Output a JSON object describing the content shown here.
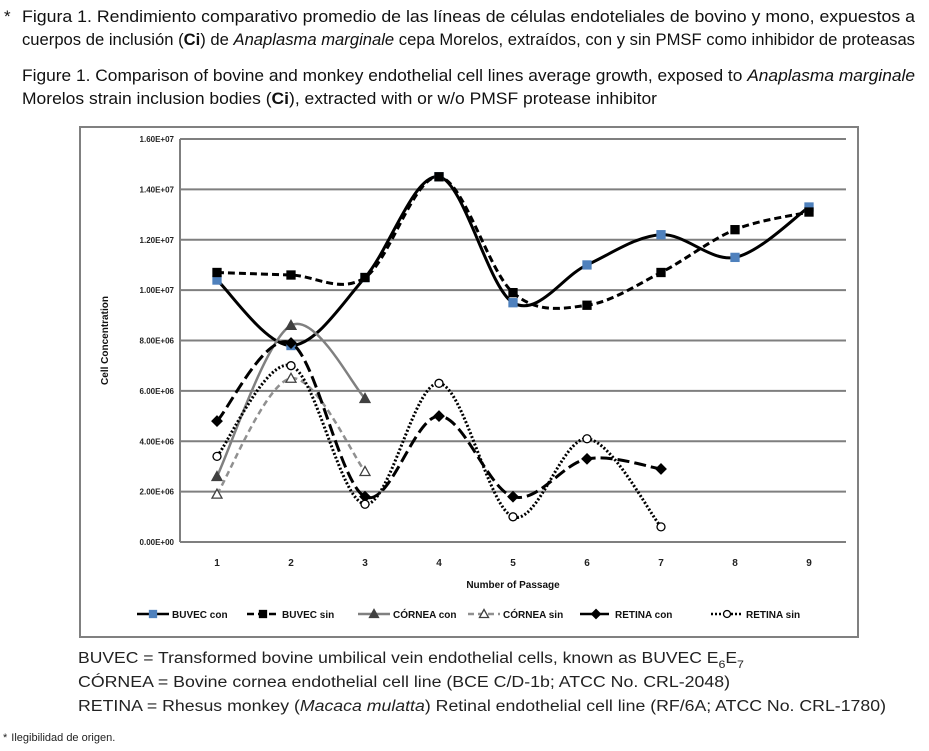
{
  "header": {
    "marker": "*",
    "es": [
      [
        "Figura 1. Rendimiento comparativo promedio de las líneas  de células endoteliales de bovino y mono, expuestos a"
      ],
      [
        "cuerpos de inclusión (",
        "Ci",
        ") de ",
        "Anaplasma marginale",
        " cepa Morelos, extraídos, con y sin PMSF como inhibidor de proteasas"
      ]
    ],
    "en": [
      [
        "Figure 1. Comparison of bovine and monkey endothelial cell lines average growth, exposed to ",
        "Anaplasma marginale"
      ],
      [
        "Morelos strain inclusion bodies (",
        "Ci",
        "), extracted with  or w/o PMSF protease inhibitor"
      ]
    ]
  },
  "chart_data": {
    "type": "line",
    "x_label": "Number of Passage",
    "y_label": "Cell Concentration",
    "categories": [
      "1",
      "2",
      "3",
      "4",
      "5",
      "6",
      "7",
      "8",
      "9"
    ],
    "ylim": [
      0,
      16000000
    ],
    "yticks": [
      {
        "value": 0,
        "label": "0.00E+00"
      },
      {
        "value": 2000000,
        "label": "2.00E+06"
      },
      {
        "value": 4000000,
        "label": "4.00E+06"
      },
      {
        "value": 6000000,
        "label": "6.00E+06"
      },
      {
        "value": 8000000,
        "label": "8.00E+06"
      },
      {
        "value": 10000000,
        "label": "1.00E+07"
      },
      {
        "value": 12000000,
        "label": "1.20E+07"
      },
      {
        "value": 14000000,
        "label": "1.40E+07"
      },
      {
        "value": 16000000,
        "label": "1.60E+07"
      }
    ],
    "grid": true,
    "series": [
      {
        "name": "BUVEC con",
        "color": "#000000",
        "marker_color": "#4f81bd",
        "marker": "square",
        "filled": true,
        "dash": "none",
        "values": [
          10400000,
          7800000,
          10500000,
          14500000,
          9500000,
          11000000,
          12200000,
          11300000,
          13300000
        ]
      },
      {
        "name": "BUVEC sin",
        "color": "#000000",
        "marker_color": "#000000",
        "marker": "square",
        "filled": true,
        "dash": "7 4",
        "values": [
          10700000,
          10600000,
          10500000,
          14500000,
          9900000,
          9400000,
          10700000,
          12400000,
          13100000
        ]
      },
      {
        "name": "CÓRNEA con",
        "color": "#808080",
        "marker_color": "#404040",
        "marker": "triangle",
        "filled": true,
        "dash": "none",
        "values": [
          2600000,
          8600000,
          5700000,
          null,
          null,
          null,
          null,
          null,
          null
        ]
      },
      {
        "name": "CÓRNEA sin",
        "color": "#909090",
        "marker_color": "#404040",
        "marker": "triangle",
        "filled": false,
        "dash": "6 4",
        "values": [
          1900000,
          6500000,
          2800000,
          null,
          null,
          null,
          null,
          null,
          null
        ]
      },
      {
        "name": "RETINA con",
        "color": "#000000",
        "marker_color": "#000000",
        "marker": "diamond",
        "filled": true,
        "dash": "12 5",
        "values": [
          4800000,
          7900000,
          1800000,
          5000000,
          1800000,
          3300000,
          2900000,
          null,
          null
        ]
      },
      {
        "name": "RETINA sin",
        "color": "#000000",
        "marker_color": "#000000",
        "marker": "circle",
        "filled": false,
        "dash": "2 2",
        "values": [
          3400000,
          7000000,
          1500000,
          6300000,
          1000000,
          4100000,
          600000,
          null,
          null
        ]
      }
    ]
  },
  "footer": {
    "buvec": [
      "BUVEC = Transformed bovine umbilical vein endothelial cells, known as BUVEC E",
      "6",
      "E",
      "7"
    ],
    "cornea": [
      "CÓRNEA = Bovine cornea endothelial cell line (BCE C/D-1b; ATCC No. CRL-2048)"
    ],
    "retina": [
      "RETINA = Rhesus monkey (",
      "Macaca mulatta",
      ") Retinal endothelial cell line (RF/6A; ATCC No. CRL-1780)"
    ],
    "note": [
      "*",
      "Ilegibilidad de origen."
    ]
  }
}
